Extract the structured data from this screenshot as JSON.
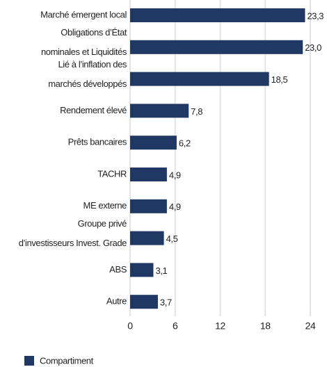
{
  "chart_data": {
    "type": "barh",
    "categories": [
      [
        "Marché émergent local"
      ],
      [
        "Obligations d’État",
        "nominales et Liquidités"
      ],
      [
        "Lié à l’inflation des",
        "marchés développés"
      ],
      [
        "Rendement élevé"
      ],
      [
        "Prêts bancaires"
      ],
      [
        "TACHR"
      ],
      [
        "ME externe"
      ],
      [
        "Groupe privé",
        "d’investisseurs Invest. Grade"
      ],
      [
        "ABS"
      ],
      [
        "Autre"
      ]
    ],
    "series": [
      {
        "name": "Compartiment",
        "color": "#1f3864",
        "values": [
          23.3,
          23.0,
          18.5,
          7.8,
          6.2,
          4.9,
          4.9,
          4.5,
          3.1,
          3.7
        ],
        "value_labels": [
          "23,3",
          "23,0",
          "18,5",
          "7,8",
          "6,2",
          "4,9",
          "4,9",
          "4,5",
          "3,1",
          "3,7"
        ]
      }
    ],
    "xlim": [
      0,
      24
    ],
    "xticks": [
      0,
      6,
      12,
      18,
      24
    ],
    "grid": true,
    "legend": "bottom-left"
  }
}
